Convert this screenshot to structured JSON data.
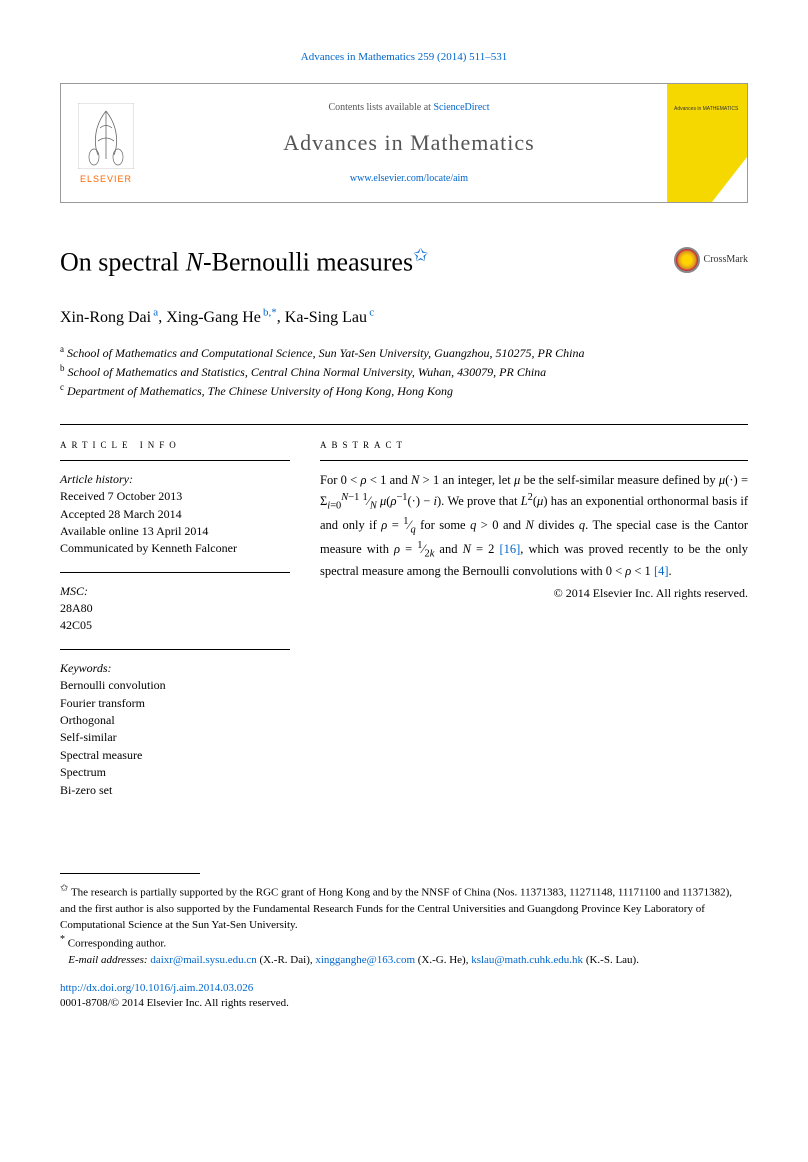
{
  "citation": "Advances in Mathematics 259 (2014) 511–531",
  "pubbox": {
    "contents_prefix": "Contents lists available at ",
    "contents_link": "ScienceDirect",
    "journal": "Advances in Mathematics",
    "journal_url": "www.elsevier.com/locate/aim",
    "elsevier": "ELSEVIER",
    "cover_label": "Advances in\nMATHEMATICS"
  },
  "title_html": "On spectral <i>N</i>-Bernoulli measures",
  "crossmark": "CrossMark",
  "authors": [
    {
      "name": "Xin-Rong Dai",
      "sup": "a"
    },
    {
      "name": "Xing-Gang He",
      "sup": "b,*"
    },
    {
      "name": "Ka-Sing Lau",
      "sup": "c"
    }
  ],
  "affiliations": [
    {
      "label": "a",
      "text": "School of Mathematics and Computational Science, Sun Yat-Sen University, Guangzhou, 510275, PR China"
    },
    {
      "label": "b",
      "text": "School of Mathematics and Statistics, Central China Normal University, Wuhan, 430079, PR China"
    },
    {
      "label": "c",
      "text": "Department of Mathematics, The Chinese University of Hong Kong, Hong Kong"
    }
  ],
  "article_info": {
    "heading": "article info",
    "history_label": "Article history:",
    "history": [
      "Received 7 October 2013",
      "Accepted 28 March 2014",
      "Available online 13 April 2014",
      "Communicated by Kenneth Falconer"
    ],
    "msc_label": "MSC:",
    "msc": [
      "28A80",
      "42C05"
    ],
    "keywords_label": "Keywords:",
    "keywords": [
      "Bernoulli convolution",
      "Fourier transform",
      "Orthogonal",
      "Self-similar",
      "Spectral measure",
      "Spectrum",
      "Bi-zero set"
    ]
  },
  "abstract": {
    "heading": "abstract",
    "text_html": "For 0 &lt; <i>ρ</i> &lt; 1 and <i>N</i> &gt; 1 an integer, let <i>μ</i> be the self-similar measure defined by <i>μ</i>(·) = Σ<sub><i>i</i>=0</sub><sup><i>N</i>−1</sup> <sup>1</sup>⁄<sub><i>N</i></sub> <i>μ</i>(<i>ρ</i><sup>−1</sup>(·) − <i>i</i>). We prove that <i>L</i><sup>2</sup>(<i>μ</i>) has an exponential orthonormal basis if and only if <i>ρ</i> = <sup>1</sup>⁄<sub><i>q</i></sub> for some <i>q</i> &gt; 0 and <i>N</i> divides <i>q</i>. The special case is the Cantor measure with <i>ρ</i> = <sup>1</sup>⁄<sub>2<i>k</i></sub> and <i>N</i> = 2 <span class=\"ref-link\">[16]</span>, which was proved recently to be the only spectral measure among the Bernoulli convolutions with 0 &lt; <i>ρ</i> &lt; 1 <span class=\"ref-link\">[4]</span>.",
    "copyright": "© 2014 Elsevier Inc. All rights reserved."
  },
  "footnotes": {
    "funding_mark": "✩",
    "funding": "The research is partially supported by the RGC grant of Hong Kong and by the NNSF of China (Nos. 11371383, 11271148, 11171100 and 11371382), and the first author is also supported by the Fundamental Research Funds for the Central Universities and Guangdong Province Key Laboratory of Computational Science at the Sun Yat-Sen University.",
    "corr_mark": "*",
    "corr": "Corresponding author.",
    "email_label": "E-mail addresses:",
    "emails": [
      {
        "addr": "daixr@mail.sysu.edu.cn",
        "who": "(X.-R. Dai)"
      },
      {
        "addr": "xingganghe@163.com",
        "who": "(X.-G. He)"
      },
      {
        "addr": "kslau@math.cuhk.edu.hk",
        "who": "(K.-S. Lau)"
      }
    ]
  },
  "doi": {
    "url": "http://dx.doi.org/10.1016/j.aim.2014.03.026",
    "issn_line": "0001-8708/© 2014 Elsevier Inc. All rights reserved."
  },
  "colors": {
    "link": "#0066cc",
    "elsevier_orange": "#ff6600",
    "cover_yellow": "#f5d800"
  }
}
